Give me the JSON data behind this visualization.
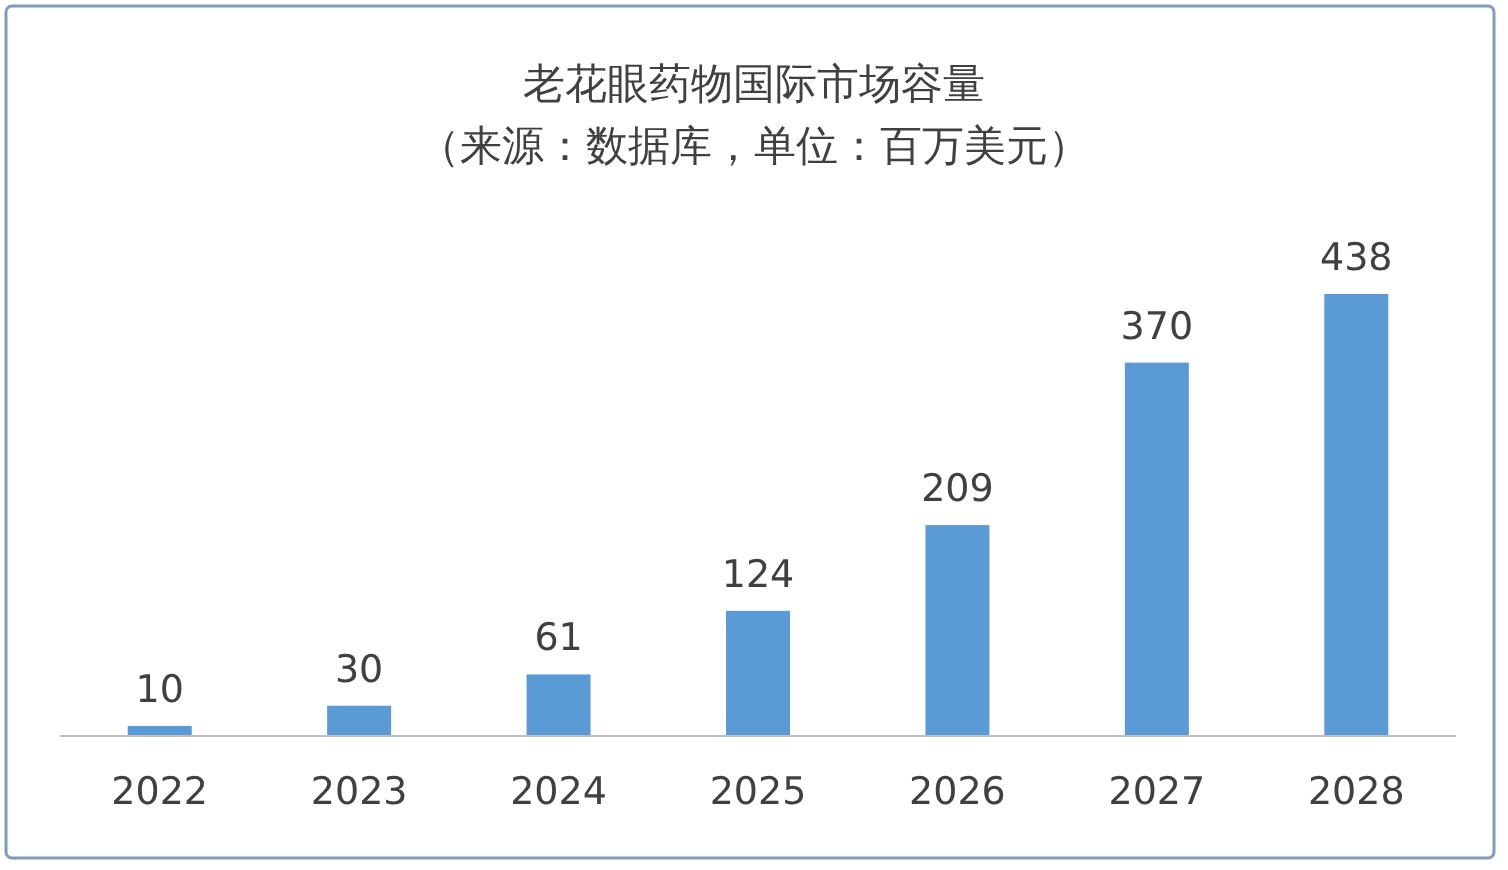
{
  "chart_data": {
    "type": "bar",
    "title": "老花眼药物国际市场容量",
    "subtitle": "（来源：数据库，单位：百万美元）",
    "categories": [
      "2022",
      "2023",
      "2024",
      "2025",
      "2026",
      "2027",
      "2028"
    ],
    "values": [
      10,
      30,
      61,
      124,
      209,
      370,
      438
    ],
    "color": "#5b9bd5",
    "data_labels": true
  }
}
